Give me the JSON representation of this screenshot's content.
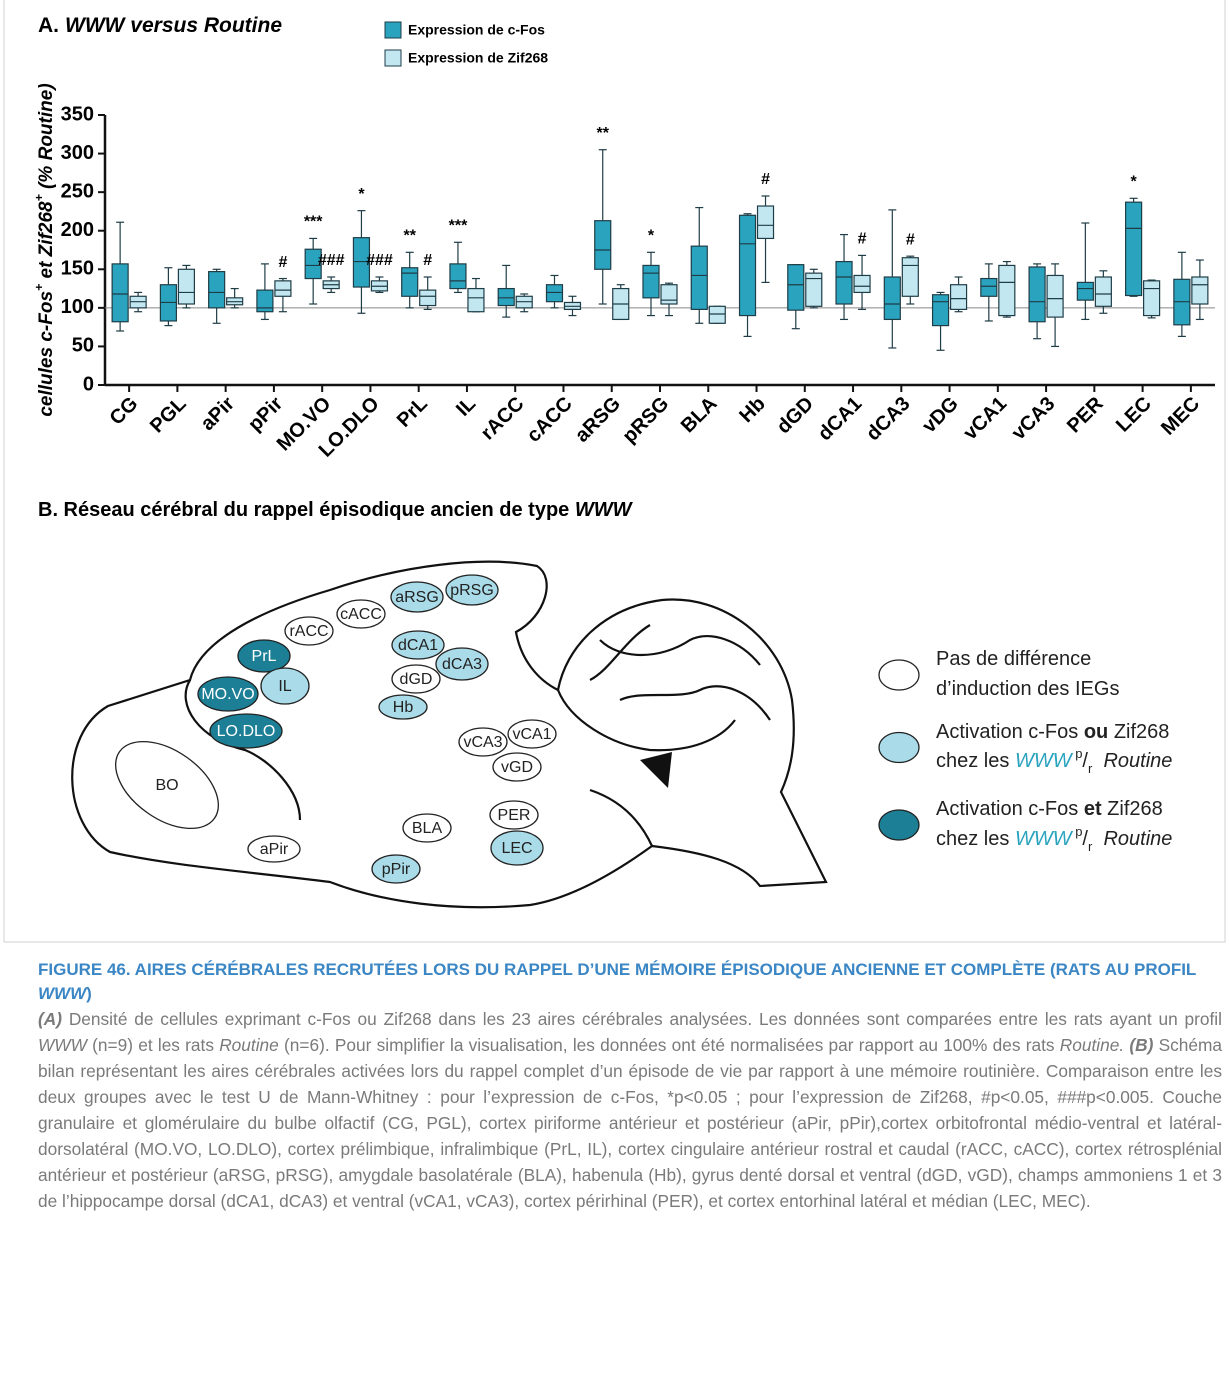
{
  "chart_data": {
    "type": "box",
    "panel": "A.",
    "title": "WWW versus Routine",
    "ylabel": [
      {
        "text": "cellules c-Fos"
      },
      {
        "text": "+",
        "sup": true
      },
      {
        "text": " et Zif268"
      },
      {
        "text": "+",
        "sup": true
      },
      {
        "text": " (% Routine)"
      }
    ],
    "categories": [
      "CG",
      "PGL",
      "aPir",
      "pPir",
      "MO.VO",
      "LO.DLO",
      "PrL",
      "IL",
      "rACC",
      "cACC",
      "aRSG",
      "pRSG",
      "BLA",
      "Hb",
      "dGD",
      "dCA1",
      "dCA3",
      "vDG",
      "vCA1",
      "vCA3",
      "PER",
      "LEC",
      "MEC"
    ],
    "ylim": [
      0,
      350
    ],
    "yticks": [
      0,
      50,
      100,
      150,
      200,
      250,
      300,
      350
    ],
    "reference_line": 100,
    "series": [
      {
        "name": "Expression de c-Fos",
        "color": "#2aa3bf",
        "min": [
          70,
          77,
          80,
          85,
          105,
          93,
          100,
          120,
          88,
          100,
          105,
          90,
          80,
          63,
          73,
          85,
          48,
          45,
          83,
          60,
          85,
          115,
          63
        ],
        "q1": [
          82,
          83,
          100,
          95,
          138,
          127,
          115,
          125,
          103,
          108,
          150,
          113,
          98,
          90,
          97,
          105,
          85,
          77,
          115,
          82,
          110,
          116,
          78
        ],
        "median": [
          118,
          107,
          120,
          100,
          155,
          160,
          145,
          135,
          113,
          120,
          175,
          145,
          142,
          183,
          130,
          140,
          105,
          108,
          128,
          108,
          125,
          203,
          108
        ],
        "q3": [
          157,
          130,
          147,
          123,
          176,
          191,
          152,
          157,
          125,
          130,
          213,
          155,
          180,
          220,
          156,
          160,
          140,
          117,
          138,
          153,
          133,
          237,
          137
        ],
        "max": [
          211,
          152,
          150,
          157,
          190,
          226,
          172,
          185,
          155,
          142,
          305,
          172,
          230,
          222,
          156,
          195,
          227,
          120,
          157,
          157,
          210,
          242,
          172
        ],
        "annotations": [
          null,
          null,
          null,
          null,
          "***",
          "*",
          "**",
          "***",
          null,
          null,
          "**",
          "*",
          null,
          null,
          null,
          null,
          null,
          null,
          null,
          null,
          null,
          "*",
          null
        ]
      },
      {
        "name": "Expression de Zif268",
        "color": "#c3e7f1",
        "min": [
          95,
          100,
          100,
          95,
          120,
          120,
          98,
          95,
          95,
          90,
          85,
          90,
          80,
          133,
          100,
          98,
          105,
          95,
          88,
          50,
          93,
          87,
          85
        ],
        "q1": [
          100,
          105,
          104,
          115,
          125,
          122,
          103,
          95,
          100,
          98,
          85,
          105,
          80,
          190,
          102,
          120,
          115,
          98,
          90,
          88,
          102,
          90,
          105
        ],
        "median": [
          108,
          120,
          108,
          123,
          130,
          128,
          115,
          113,
          108,
          102,
          105,
          110,
          92,
          207,
          138,
          128,
          155,
          112,
          133,
          112,
          118,
          125,
          130
        ],
        "q3": [
          115,
          150,
          113,
          135,
          135,
          135,
          123,
          125,
          115,
          107,
          125,
          130,
          102,
          232,
          145,
          142,
          165,
          130,
          155,
          142,
          140,
          135,
          140
        ],
        "max": [
          120,
          155,
          125,
          138,
          140,
          140,
          140,
          138,
          118,
          115,
          130,
          132,
          102,
          245,
          150,
          168,
          167,
          140,
          160,
          157,
          148,
          136,
          162
        ],
        "annotations": [
          null,
          null,
          null,
          "#",
          "###",
          "###",
          "#",
          null,
          null,
          null,
          null,
          null,
          null,
          "#",
          null,
          "#",
          "#",
          null,
          null,
          null,
          null,
          null,
          null
        ]
      }
    ]
  },
  "diagram": {
    "title": [
      {
        "text": "B. Réseau cérébral du rappel épisodique ancien de type "
      },
      {
        "text": "WWW",
        "italic": true
      }
    ],
    "nodes": [
      {
        "label": "aRSG",
        "fill": "#a9dbe8"
      },
      {
        "label": "pRSG",
        "fill": "#a9dbe8"
      },
      {
        "label": "cACC",
        "fill": "#ffffff"
      },
      {
        "label": "rACC",
        "fill": "#ffffff"
      },
      {
        "label": "PrL",
        "fill": "#1d7f96"
      },
      {
        "label": "dCA1",
        "fill": "#a9dbe8"
      },
      {
        "label": "dCA3",
        "fill": "#a9dbe8"
      },
      {
        "label": "dGD",
        "fill": "#ffffff"
      },
      {
        "label": "IL",
        "fill": "#a9dbe8"
      },
      {
        "label": "MO.VO",
        "fill": "#1d7f96"
      },
      {
        "label": "Hb",
        "fill": "#a9dbe8"
      },
      {
        "label": "LO.DLO",
        "fill": "#1d7f96"
      },
      {
        "label": "vCA1",
        "fill": "#ffffff"
      },
      {
        "label": "vCA3",
        "fill": "#ffffff"
      },
      {
        "label": "vGD",
        "fill": "#ffffff"
      },
      {
        "label": "BO",
        "fill": "#ffffff"
      },
      {
        "label": "PER",
        "fill": "#ffffff"
      },
      {
        "label": "BLA",
        "fill": "#ffffff"
      },
      {
        "label": "LEC",
        "fill": "#a9dbe8"
      },
      {
        "label": "aPir",
        "fill": "#ffffff"
      },
      {
        "label": "pPir",
        "fill": "#a9dbe8"
      }
    ],
    "legend": [
      {
        "fill": "#ffffff",
        "lines": [
          [
            {
              "text": "Pas de différence"
            }
          ],
          [
            {
              "text": "d’induction des IEGs"
            }
          ]
        ]
      },
      {
        "fill": "#a9dbe8",
        "lines": [
          [
            {
              "text": "Activation c-Fos "
            },
            {
              "text": "ou",
              "bold": true
            },
            {
              "text": " Zif268"
            }
          ],
          [
            {
              "text": "chez les "
            },
            {
              "text": "WWW",
              "italic": true,
              "color": "#2aa3bf"
            },
            {
              "text": " p",
              "sup": true
            },
            {
              "text": "/"
            },
            {
              "text": "r",
              "sub": true
            },
            {
              "text": "  Routine",
              "italic": true
            }
          ]
        ]
      },
      {
        "fill": "#1d7f96",
        "lines": [
          [
            {
              "text": "Activation c-Fos "
            },
            {
              "text": "et",
              "bold": true
            },
            {
              "text": " Zif268"
            }
          ],
          [
            {
              "text": "chez les "
            },
            {
              "text": "WWW",
              "italic": true,
              "color": "#2aa3bf"
            },
            {
              "text": " p",
              "sup": true
            },
            {
              "text": "/"
            },
            {
              "text": "r",
              "sub": true
            },
            {
              "text": "  Routine",
              "italic": true
            }
          ]
        ]
      }
    ]
  },
  "caption": {
    "title": [
      {
        "text": "FIGURE 46. AIRES CÉRÉBRALES RECRUTÉES LORS DU RAPPEL D’UNE MÉMOIRE ÉPISODIQUE ANCIENNE ET COMPLÈTE (RATS AU PROFIL "
      },
      {
        "text": "WWW",
        "italic": true
      },
      {
        "text": ")"
      }
    ],
    "body": [
      {
        "text": "(A)",
        "italic": true,
        "bold": true
      },
      {
        "text": " Densité de cellules exprimant c-Fos ou Zif268 dans les 23 aires cérébrales analysées. Les données sont comparées entre les rats ayant un profil "
      },
      {
        "text": "WWW",
        "italic": true
      },
      {
        "text": " (n=9) et les rats "
      },
      {
        "text": "Routine",
        "italic": true
      },
      {
        "text": " (n=6). Pour simplifier la visualisation, les données ont été normalisées par rapport au 100% des rats "
      },
      {
        "text": "Routine.",
        "italic": true
      },
      {
        "text": " "
      },
      {
        "text": "(B)",
        "italic": true,
        "bold": true
      },
      {
        "text": " Schéma bilan représentant les aires cérébrales activées lors du rappel complet d’un épisode de vie par rapport à une mémoire routinière. Comparaison entre les deux groupes avec le test U de Mann-Whitney : pour l’expression de c-Fos, *p<0.05 ; pour l’expression de Zif268, #p<0.05, ###p<0.005. Couche granulaire et glomérulaire du bulbe olfactif (CG, PGL), cortex piriforme antérieur et postérieur (aPir, pPir),cortex orbitofrontal médio-ventral et latéral-dorsolatéral (MO.VO, LO.DLO), cortex prélimbique, infralimbique (PrL, IL), cortex cingulaire antérieur rostral et caudal (rACC, cACC), cortex rétrosplénial antérieur et postérieur (aRSG, pRSG), amygdale basolatérale (BLA), habenula (Hb), gyrus denté dorsal et ventral (dGD, vGD), champs ammoniens 1 et 3 de l’hippocampe dorsal (dCA1, dCA3) et ventral (vCA1, vCA3), cortex périrhinal (PER), et cortex entorhinal latéral et médian (LEC, MEC)."
      }
    ]
  }
}
